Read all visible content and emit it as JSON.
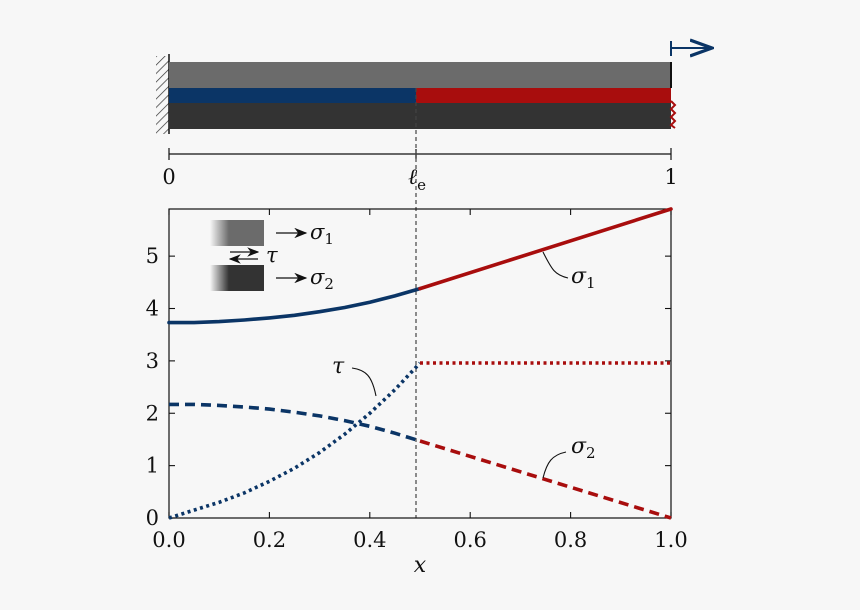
{
  "colors": {
    "elastic_blue": "#0b3566",
    "debond_red": "#a80d0d",
    "layer_top_gray": "#6b6b6b",
    "layer_bottom_dark": "#333333",
    "load_arrow": "#0b3566",
    "background": "#f7f7f7"
  },
  "bar_schematic": {
    "scale_labels": [
      "0",
      "1"
    ],
    "boundary_label": "ℓ",
    "boundary_subscript": "e",
    "boundary_position": 0.5,
    "support_icon": "hatched-wall-icon",
    "load_icon": "right-arrow-icon"
  },
  "inset_legend": {
    "sigma1_label": "σ",
    "sigma1_sub": "1",
    "tau_label": "τ",
    "sigma2_label": "σ",
    "sigma2_sub": "2"
  },
  "chart_data": {
    "type": "line",
    "xlabel": "x",
    "ylabel": "",
    "xlim": [
      0.0,
      1.0
    ],
    "ylim": [
      0,
      5.9
    ],
    "xticks": [
      "0.0",
      "0.2",
      "0.4",
      "0.6",
      "0.8",
      "1.0"
    ],
    "yticks": [
      "0",
      "1",
      "2",
      "3",
      "4",
      "5"
    ],
    "grid": false,
    "legend": "inset top-left",
    "vline": {
      "x": 0.5,
      "style": "dashed"
    },
    "series": [
      {
        "name": "σ1",
        "style": "solid",
        "color": "#0b3566",
        "x": [
          0.0,
          0.05,
          0.1,
          0.15,
          0.2,
          0.25,
          0.3,
          0.35,
          0.4,
          0.45,
          0.5
        ],
        "y": [
          3.73,
          3.73,
          3.75,
          3.78,
          3.82,
          3.87,
          3.94,
          4.02,
          4.12,
          4.24,
          4.38
        ]
      },
      {
        "name": "σ1",
        "style": "solid",
        "color": "#a80d0d",
        "x": [
          0.5,
          1.0
        ],
        "y": [
          4.38,
          5.9
        ]
      },
      {
        "name": "τ",
        "style": "dotted",
        "color": "#0b3566",
        "x": [
          0.0,
          0.05,
          0.1,
          0.15,
          0.2,
          0.25,
          0.3,
          0.35,
          0.4,
          0.45,
          0.5
        ],
        "y": [
          0.0,
          0.15,
          0.3,
          0.48,
          0.7,
          0.95,
          1.25,
          1.6,
          2.0,
          2.45,
          2.96
        ]
      },
      {
        "name": "τ",
        "style": "dotted",
        "color": "#a80d0d",
        "x": [
          0.5,
          1.0
        ],
        "y": [
          2.96,
          2.96
        ]
      },
      {
        "name": "σ2",
        "style": "dashed",
        "color": "#0b3566",
        "x": [
          0.0,
          0.05,
          0.1,
          0.15,
          0.2,
          0.25,
          0.3,
          0.35,
          0.4,
          0.45,
          0.5
        ],
        "y": [
          2.17,
          2.17,
          2.15,
          2.12,
          2.08,
          2.02,
          1.95,
          1.86,
          1.75,
          1.62,
          1.47
        ]
      },
      {
        "name": "σ2",
        "style": "dashed",
        "color": "#a80d0d",
        "x": [
          0.5,
          1.0
        ],
        "y": [
          1.47,
          0.0
        ]
      }
    ],
    "annotations": [
      {
        "label": "σ",
        "sub": "1",
        "x": 0.74,
        "y": 5.15
      },
      {
        "label": "τ",
        "sub": "",
        "x": 0.42,
        "y": 2.45
      },
      {
        "label": "σ",
        "sub": "2",
        "x": 0.74,
        "y": 0.78
      }
    ]
  }
}
